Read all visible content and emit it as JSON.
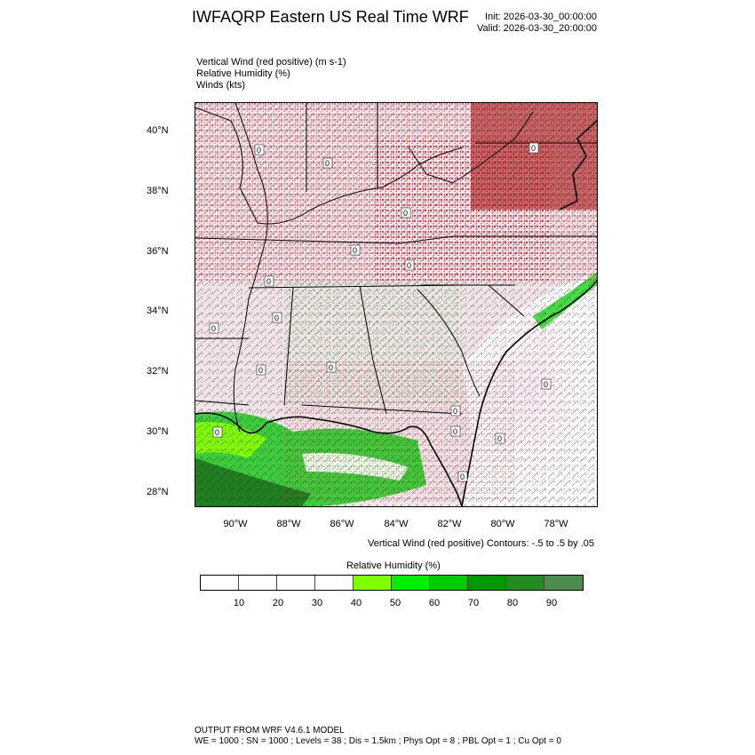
{
  "header": {
    "title": "IWFAQRP Eastern US Real Time WRF",
    "init": "Init: 2026-03-30_00:00:00",
    "valid": "Valid: 2026-03-30_20:00:00"
  },
  "fields": [
    "Vertical Wind (red positive)   (m s-1)",
    "Relative Humidity   (%)",
    "Winds   (kts)"
  ],
  "map": {
    "lat_ticks": [
      "40°N",
      "38°N",
      "36°N",
      "34°N",
      "32°N",
      "30°N",
      "28°N"
    ],
    "lon_ticks": [
      "90°W",
      "88°W",
      "86°W",
      "84°W",
      "82°W",
      "80°W",
      "78°W"
    ],
    "contour_label": "0",
    "contour_note": "Vertical Wind (red positive) Contours: -.5 to .5 by .05"
  },
  "colorbar": {
    "title": "Relative Humidity  (%)",
    "labels": [
      "10",
      "20",
      "30",
      "40",
      "50",
      "60",
      "70",
      "80",
      "90"
    ],
    "colors": [
      "#ffffff",
      "#ffffff",
      "#ffffff",
      "#ffffff",
      "#80ff00",
      "#00f000",
      "#00cc00",
      "#009900",
      "#228b22",
      "#4c8c4c"
    ]
  },
  "footer": {
    "line1": "OUTPUT FROM WRF V4.6.1 MODEL",
    "line2": "WE = 1000 ; SN = 1000 ; Levels = 38 ; Dis = 1.5km ; Phys Opt = 8 ; PBL Opt = 1 ; Cu Opt = 0"
  }
}
